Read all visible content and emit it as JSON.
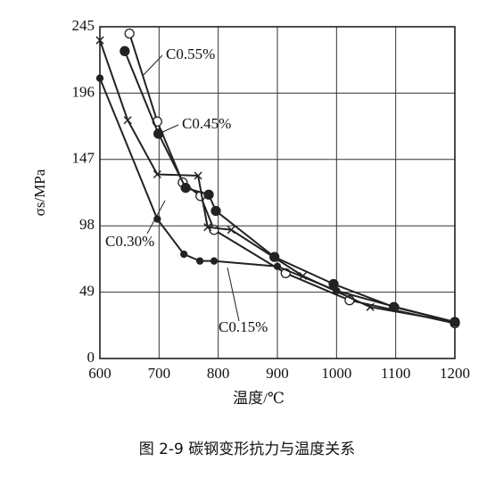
{
  "chart_data": {
    "type": "line",
    "xlabel": "温度/℃",
    "ylabel": "σs/MPa",
    "caption": "图 2-9   碳钢变形抗力与温度关系",
    "xlim": [
      600,
      1200
    ],
    "xticks": [
      600,
      700,
      800,
      900,
      1000,
      1100,
      1200
    ],
    "ylim": [
      0,
      245
    ],
    "yticks": [
      0,
      49,
      98,
      147,
      196,
      245
    ],
    "grid": true,
    "annotations": [
      "C0.55%",
      "C0.45%",
      "C0.30%",
      "C0.15%"
    ],
    "series": [
      {
        "name": "C0.55%",
        "color": "#222222",
        "marker": "open-circle",
        "x": [
          650,
          697,
          740,
          770,
          793,
          914,
          1022,
          1200
        ],
        "values": [
          240,
          175,
          130,
          120,
          95,
          63,
          43,
          26
        ]
      },
      {
        "name": "C0.45%",
        "color": "#222222",
        "marker": "circle",
        "x": [
          642,
          699,
          745,
          784,
          796,
          895,
          995,
          1097,
          1200
        ],
        "values": [
          227,
          166,
          126,
          121,
          109,
          75,
          55,
          38,
          27
        ]
      },
      {
        "name": "C0.30%",
        "color": "#222222",
        "marker": "x",
        "x": [
          600,
          647,
          697,
          766,
          782,
          822,
          943,
          1057,
          1200
        ],
        "values": [
          235,
          176,
          136,
          135,
          97,
          95,
          61,
          38,
          27
        ]
      },
      {
        "name": "C0.15%",
        "color": "#222222",
        "marker": "dot",
        "x": [
          600,
          697,
          742,
          769,
          793,
          900,
          1000,
          1100,
          1200
        ],
        "values": [
          207,
          103,
          77,
          72,
          72,
          68,
          50,
          38,
          27
        ]
      }
    ]
  }
}
